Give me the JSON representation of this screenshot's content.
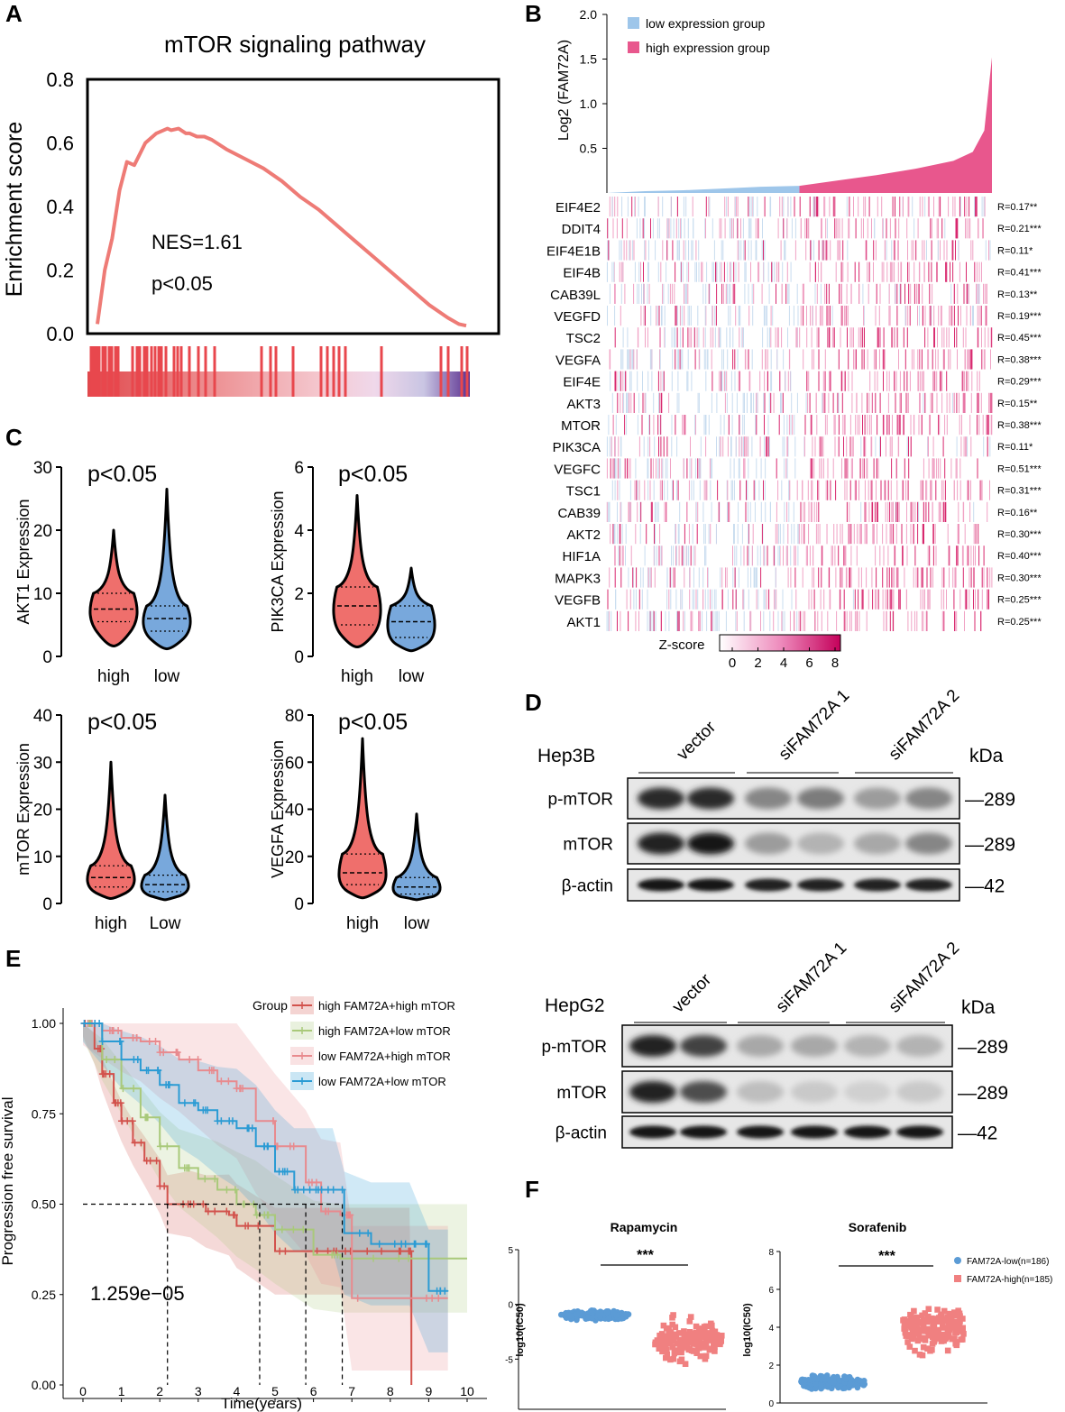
{
  "panels": {
    "A": {
      "letter": "A",
      "title": "mTOR signaling pathway",
      "ylabel": "Enrichment score",
      "yticks": [
        "0.8",
        "0.6",
        "0.4",
        "0.2",
        "0.0"
      ],
      "nes": "NES=1.61",
      "pval": "p<0.05",
      "colors": {
        "curve": "#ee7b76"
      }
    },
    "B": {
      "letter": "B",
      "ylabel": "Log2 (FAM72A)",
      "yticks": [
        "2.0",
        "1.5",
        "1.0",
        "0.5"
      ],
      "legend": [
        "low expression group",
        "high expression group"
      ],
      "colors": {
        "low": "#9ec6ea",
        "high": "#e8578d"
      },
      "genes": [
        "EIF4E2",
        "DDIT4",
        "EIF4E1B",
        "EIF4B",
        "CAB39L",
        "VEGFD",
        "TSC2",
        "VEGFA",
        "EIF4E",
        "AKT3",
        "MTOR",
        "PIK3CA",
        "VEGFC",
        "TSC1",
        "CAB39",
        "AKT2",
        "HIF1A",
        "MAPK3",
        "VEGFB",
        "AKT1"
      ],
      "correlations": [
        "R=0.17**",
        "R=0.21***",
        "R=0.11*",
        "R=0.41***",
        "R=0.13**",
        "R=0.19***",
        "R=0.45***",
        "R=0.38***",
        "R=0.29***",
        "R=0.15**",
        "R=0.38***",
        "R=0.11*",
        "R=0.51***",
        "R=0.31***",
        "R=0.16**",
        "R=0.30***",
        "R=0.40***",
        "R=0.30***",
        "R=0.25***",
        "R=0.25***"
      ],
      "zscore_label": "Z-score",
      "zscore_ticks": [
        "0",
        "2",
        "4",
        "6",
        "8"
      ]
    },
    "C": {
      "letter": "C",
      "plots": [
        {
          "ylabel": "AKT1 Expression",
          "pval": "p<0.05",
          "yticks": [
            "30",
            "20",
            "10",
            "0"
          ],
          "xlabels": [
            "high",
            "low"
          ]
        },
        {
          "ylabel": "PIK3CA Expression",
          "pval": "p<0.05",
          "yticks": [
            "6",
            "4",
            "2",
            "0"
          ],
          "xlabels": [
            "high",
            "low"
          ]
        },
        {
          "ylabel": "mTOR Expression",
          "pval": "p<0.05",
          "yticks": [
            "40",
            "30",
            "20",
            "10",
            "0"
          ],
          "xlabels": [
            "high",
            "Low"
          ]
        },
        {
          "ylabel": "VEGFA Expression",
          "pval": "p<0.05",
          "yticks": [
            "80",
            "60",
            "40",
            "20",
            "0"
          ],
          "xlabels": [
            "high",
            "low"
          ]
        }
      ],
      "colors": {
        "high": "#ef6f6c",
        "low": "#78a8dc"
      }
    },
    "D": {
      "letter": "D",
      "blots": [
        {
          "cell_line": "Hep3B",
          "groups": [
            "vector",
            "siFAM72A 1",
            "siFAM72A 2"
          ],
          "kda": "kDa",
          "rows": [
            "p-mTOR",
            "mTOR",
            "β-actin"
          ],
          "sizes": [
            "—289",
            "—289",
            "—42"
          ]
        },
        {
          "cell_line": "HepG2",
          "groups": [
            "vector",
            "siFAM72A 1",
            "siFAM72A 2"
          ],
          "kda": "kDa",
          "rows": [
            "p-mTOR",
            "mTOR",
            "β-actin"
          ],
          "sizes": [
            "—289",
            "—289",
            "—42"
          ]
        }
      ]
    },
    "E": {
      "letter": "E",
      "legend_title": "Group",
      "groups": [
        "high FAM72A+high mTOR",
        "high FAM72A+low mTOR",
        "low FAM72A+high mTOR",
        "low FAM72A+low mTOR"
      ],
      "colors": [
        "#d2524c",
        "#a9c97a",
        "#e88a8e",
        "#2a9bd4"
      ],
      "ylabel": "Progression free survival",
      "xlabel": "Time(years)",
      "yticks": [
        "1.00",
        "0.75",
        "0.50",
        "0.25",
        "0.00"
      ],
      "xticks": [
        "0",
        "1",
        "2",
        "3",
        "4",
        "5",
        "6",
        "7",
        "8",
        "9",
        "10"
      ],
      "pvalue": "1.259e−05"
    },
    "F": {
      "letter": "F",
      "plots": [
        {
          "title": "Rapamycin",
          "sig": "***",
          "yticks": [
            "5",
            "0",
            "-5",
            "-10"
          ]
        },
        {
          "title": "Sorafenib",
          "sig": "***",
          "yticks": [
            "8",
            "6",
            "4",
            "2",
            "0"
          ]
        }
      ],
      "ylabel": "log10(IC50)",
      "legend": [
        "FAM72A-low(n=186)",
        "FAM72A-high(n=185)"
      ],
      "colors": {
        "low": "#5b9bd5",
        "high": "#f08080"
      }
    }
  },
  "chart_data": [
    {
      "panel": "A",
      "type": "line",
      "title": "mTOR signaling pathway",
      "xlabel": "",
      "ylabel": "Enrichment score",
      "ylim": [
        0,
        0.8
      ],
      "x": [
        0.0,
        0.02,
        0.04,
        0.06,
        0.08,
        0.1,
        0.13,
        0.16,
        0.19,
        0.2,
        0.22,
        0.24,
        0.25,
        0.27,
        0.29,
        0.31,
        0.35,
        0.4,
        0.45,
        0.5,
        0.55,
        0.6,
        0.65,
        0.7,
        0.75,
        0.8,
        0.85,
        0.9,
        0.95,
        0.98,
        1.0
      ],
      "y": [
        0.03,
        0.2,
        0.3,
        0.45,
        0.54,
        0.53,
        0.6,
        0.63,
        0.645,
        0.64,
        0.645,
        0.63,
        0.63,
        0.62,
        0.62,
        0.61,
        0.58,
        0.55,
        0.52,
        0.48,
        0.43,
        0.39,
        0.34,
        0.29,
        0.24,
        0.19,
        0.14,
        0.09,
        0.05,
        0.03,
        0.025
      ]
    },
    {
      "panel": "B",
      "type": "area",
      "title": "",
      "xlabel": "",
      "ylabel": "Log2 (FAM72A)",
      "ylim": [
        0,
        2.0
      ],
      "series": [
        {
          "name": "low expression group",
          "x": [
            0,
            0.1,
            0.2,
            0.3,
            0.4,
            0.5
          ],
          "values": [
            0.0,
            0.02,
            0.03,
            0.05,
            0.07,
            0.08
          ]
        },
        {
          "name": "high expression group",
          "x": [
            0.5,
            0.6,
            0.7,
            0.8,
            0.9,
            0.95,
            0.98,
            1.0
          ],
          "values": [
            0.08,
            0.14,
            0.2,
            0.27,
            0.36,
            0.46,
            0.7,
            1.52
          ]
        }
      ]
    },
    {
      "panel": "B",
      "type": "heatmap",
      "rows": [
        "EIF4E2",
        "DDIT4",
        "EIF4E1B",
        "EIF4B",
        "CAB39L",
        "VEGFD",
        "TSC2",
        "VEGFA",
        "EIF4E",
        "AKT3",
        "MTOR",
        "PIK3CA",
        "VEGFC",
        "TSC1",
        "CAB39",
        "AKT2",
        "HIF1A",
        "MAPK3",
        "VEGFB",
        "AKT1"
      ],
      "correlations": [
        0.17,
        0.21,
        0.11,
        0.41,
        0.13,
        0.19,
        0.45,
        0.38,
        0.29,
        0.15,
        0.38,
        0.11,
        0.51,
        0.31,
        0.16,
        0.3,
        0.4,
        0.3,
        0.25,
        0.25
      ],
      "zlim": [
        0,
        8
      ]
    },
    {
      "panel": "C",
      "type": "violin",
      "plots": [
        {
          "title": "AKT1 Expression",
          "categories": [
            "high",
            "low"
          ],
          "ylim": [
            0,
            30
          ],
          "median": [
            7.5,
            6.0
          ],
          "q1": [
            5.5,
            4.0
          ],
          "q3": [
            10.0,
            8.0
          ],
          "max": [
            20,
            26.5
          ]
        },
        {
          "title": "PIK3CA Expression",
          "categories": [
            "high",
            "low"
          ],
          "ylim": [
            0,
            6
          ],
          "median": [
            1.6,
            1.1
          ],
          "q1": [
            1.0,
            0.6
          ],
          "q3": [
            2.2,
            1.6
          ],
          "max": [
            5.1,
            2.8
          ]
        },
        {
          "title": "mTOR Expression",
          "categories": [
            "high",
            "Low"
          ],
          "ylim": [
            0,
            40
          ],
          "median": [
            5.5,
            4.0
          ],
          "q1": [
            3.5,
            2.5
          ],
          "q3": [
            8.0,
            6.0
          ],
          "max": [
            30,
            23
          ]
        },
        {
          "title": "VEGFA Expression",
          "categories": [
            "high",
            "low"
          ],
          "ylim": [
            0,
            80
          ],
          "median": [
            13,
            7
          ],
          "q1": [
            8,
            4
          ],
          "q3": [
            21,
            11
          ],
          "max": [
            70,
            38
          ]
        }
      ]
    },
    {
      "panel": "E",
      "type": "line",
      "title": "",
      "xlabel": "Time(years)",
      "ylabel": "Progression free survival",
      "xlim": [
        0,
        10
      ],
      "ylim": [
        0,
        1
      ],
      "series": [
        {
          "name": "high FAM72A+high mTOR",
          "x": [
            0,
            0.3,
            0.5,
            0.8,
            1.0,
            1.3,
            1.6,
            2.0,
            2.2,
            2.8,
            3.2,
            3.8,
            4.0,
            5.0,
            6.0,
            6.5,
            7.0,
            8.0,
            8.5,
            8.55
          ],
          "values": [
            1.0,
            0.93,
            0.86,
            0.78,
            0.73,
            0.67,
            0.62,
            0.55,
            0.5,
            0.5,
            0.48,
            0.47,
            0.44,
            0.37,
            0.37,
            0.37,
            0.37,
            0.37,
            0.37,
            0.0
          ]
        },
        {
          "name": "high FAM72A+low mTOR",
          "x": [
            0,
            0.5,
            1.0,
            1.5,
            2.0,
            2.5,
            3.0,
            3.5,
            4.0,
            4.5,
            5.0,
            6.0,
            6.7,
            10.0
          ],
          "values": [
            1.0,
            0.9,
            0.82,
            0.74,
            0.66,
            0.6,
            0.57,
            0.54,
            0.5,
            0.47,
            0.43,
            0.36,
            0.35,
            0.35
          ]
        },
        {
          "name": "low FAM72A+high mTOR",
          "x": [
            0,
            0.5,
            1.0,
            1.5,
            2.0,
            2.5,
            3.0,
            3.5,
            4.0,
            4.5,
            5.0,
            5.8,
            6.2,
            6.7,
            7.0,
            9.5
          ],
          "values": [
            1.0,
            0.98,
            0.96,
            0.95,
            0.92,
            0.9,
            0.87,
            0.84,
            0.82,
            0.73,
            0.66,
            0.56,
            0.48,
            0.47,
            0.24,
            0.24
          ]
        },
        {
          "name": "low FAM72A+low mTOR",
          "x": [
            0,
            0.5,
            1.0,
            1.5,
            2.0,
            2.5,
            3.0,
            3.5,
            4.0,
            4.5,
            5.0,
            5.5,
            6.0,
            6.5,
            6.8,
            7.5,
            8.5,
            9.0,
            9.5
          ],
          "values": [
            1.0,
            0.95,
            0.9,
            0.87,
            0.83,
            0.78,
            0.76,
            0.73,
            0.71,
            0.66,
            0.59,
            0.54,
            0.54,
            0.54,
            0.42,
            0.39,
            0.39,
            0.26,
            0.26
          ]
        }
      ],
      "annotations": {
        "pvalue": "1.259e−05",
        "median_pfs_years": [
          2.2,
          4.6,
          5.8,
          6.75
        ]
      }
    },
    {
      "panel": "F",
      "type": "scatter",
      "plots": [
        {
          "title": "Rapamycin",
          "categories": [
            "FAM72A-low(n=186)",
            "FAM72A-high(n=185)"
          ],
          "ylim": [
            -10,
            5
          ],
          "center": [
            -1.0,
            -3.2
          ],
          "spread": [
            1.2,
            5.0
          ]
        },
        {
          "title": "Sorafenib",
          "categories": [
            "FAM72A-low(n=186)",
            "FAM72A-high(n=185)"
          ],
          "ylim": [
            0,
            8
          ],
          "center": [
            1.1,
            3.9
          ],
          "spread": [
            1.0,
            3.5
          ]
        }
      ]
    }
  ]
}
